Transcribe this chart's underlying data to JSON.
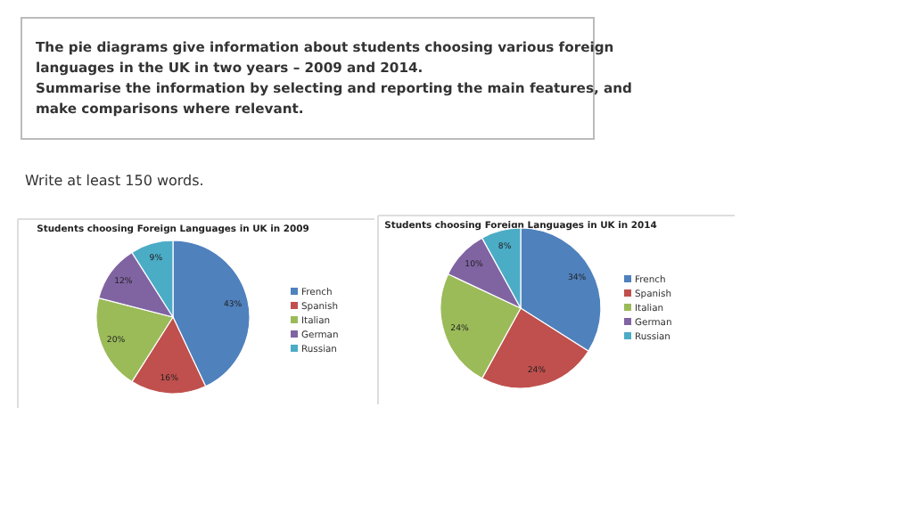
{
  "chart_data": [
    {
      "type": "other",
      "annotations": [
        "The pie diagrams give information about students choosing various foreign languages in the UK in two years – 2009 and 2014.",
        "Summarise the information by selecting and reporting the main features, and make comparisons where relevant.",
        "Write at least 150 words."
      ]
    },
    {
      "type": "pie",
      "title": "Students choosing Foreign Languages in UK in 2009",
      "categories": [
        "French",
        "Spanish",
        "Italian",
        "German",
        "Russian"
      ],
      "values": [
        43,
        16,
        20,
        12,
        9
      ],
      "value_labels": [
        "43%",
        "16%",
        "20%",
        "12%",
        "9%"
      ],
      "colors": [
        "#4f81bd",
        "#c0504d",
        "#9bbb59",
        "#8064a2",
        "#4bacc6"
      ],
      "legend": "right"
    },
    {
      "type": "pie",
      "title": "Students choosing Foreign Languages in UK in 2014",
      "categories": [
        "French",
        "Spanish",
        "Italian",
        "German",
        "Russian"
      ],
      "values": [
        34,
        24,
        24,
        10,
        8
      ],
      "value_labels": [
        "34%",
        "24%",
        "24%",
        "10%",
        "8%"
      ],
      "colors": [
        "#4f81bd",
        "#c0504d",
        "#9bbb59",
        "#8064a2",
        "#4bacc6"
      ],
      "legend": "right"
    }
  ]
}
